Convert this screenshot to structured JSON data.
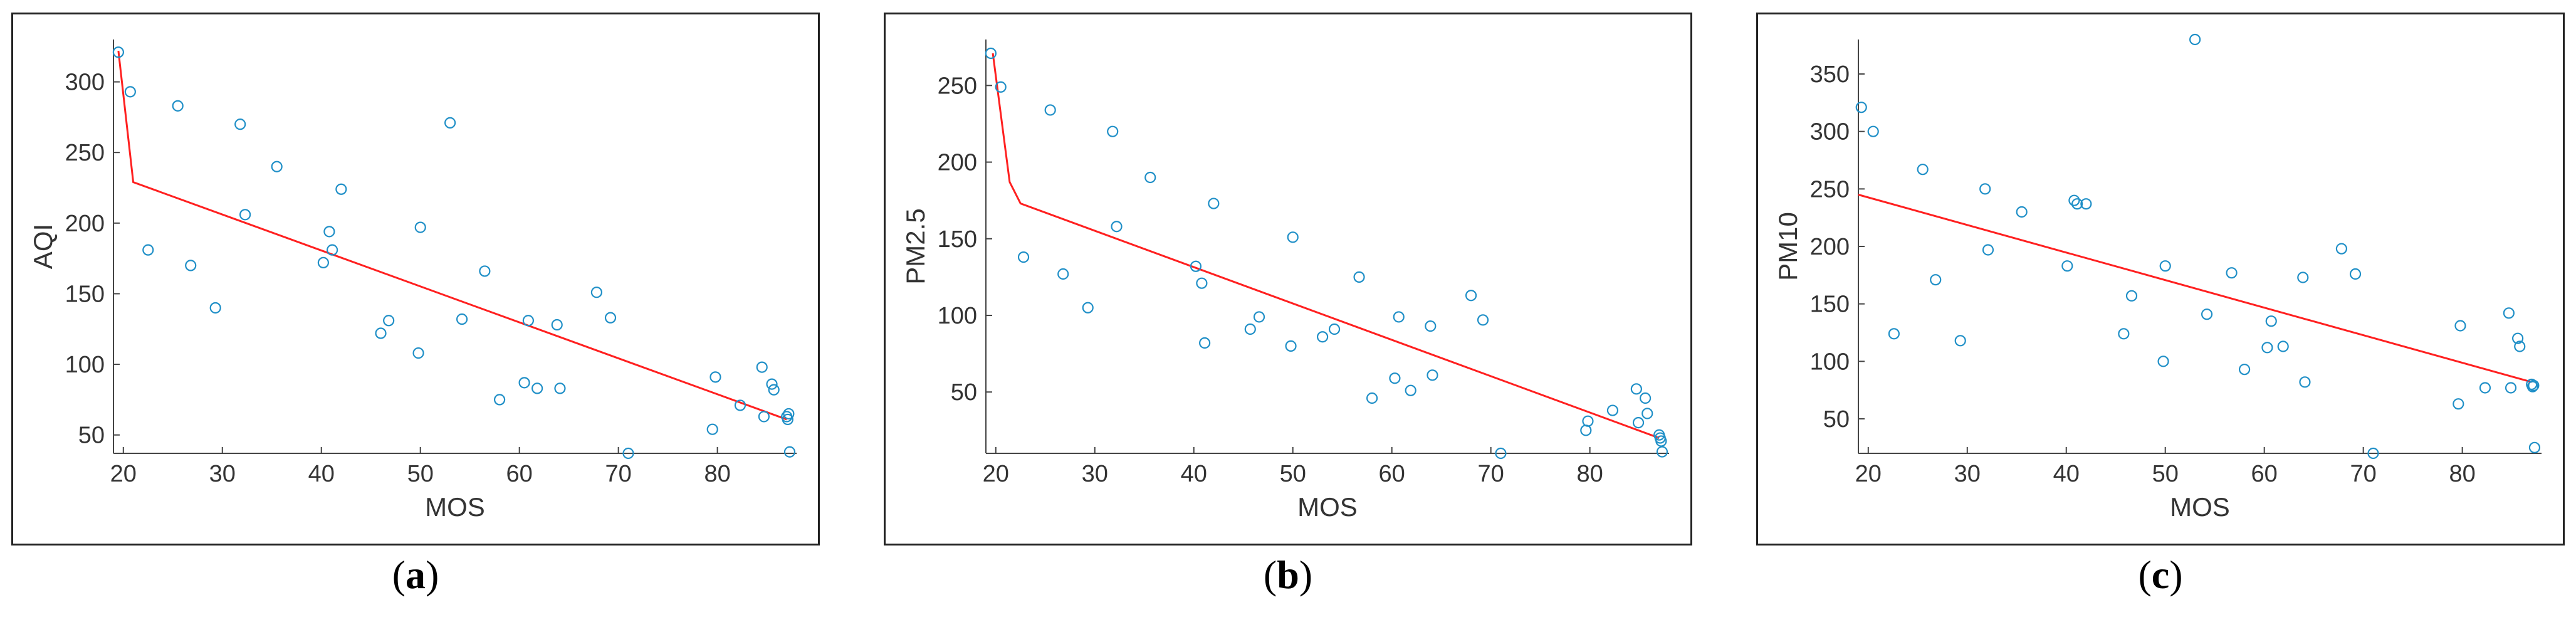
{
  "colors": {
    "points": "#1f8fc7",
    "fit": "#ff2020",
    "axis": "#444444"
  },
  "chart_data": [
    {
      "type": "scatter",
      "caption_letter": "a",
      "xlabel": "MOS",
      "ylabel": "AQI",
      "xlim": [
        19,
        88
      ],
      "ylim": [
        37,
        330
      ],
      "xticks": [
        "20",
        "30",
        "40",
        "50",
        "60",
        "70",
        "80"
      ],
      "yticks": [
        "50",
        "100",
        "150",
        "200",
        "250",
        "300"
      ],
      "points": [
        {
          "x": 19.5,
          "y": 321
        },
        {
          "x": 20.7,
          "y": 293
        },
        {
          "x": 22.5,
          "y": 181
        },
        {
          "x": 25.5,
          "y": 283
        },
        {
          "x": 26.8,
          "y": 170
        },
        {
          "x": 29.3,
          "y": 140
        },
        {
          "x": 31.8,
          "y": 270
        },
        {
          "x": 32.3,
          "y": 206
        },
        {
          "x": 35.5,
          "y": 240
        },
        {
          "x": 40.2,
          "y": 172
        },
        {
          "x": 40.8,
          "y": 194
        },
        {
          "x": 41.1,
          "y": 181
        },
        {
          "x": 42.0,
          "y": 224
        },
        {
          "x": 46.0,
          "y": 122
        },
        {
          "x": 46.8,
          "y": 131
        },
        {
          "x": 49.8,
          "y": 108
        },
        {
          "x": 50.0,
          "y": 197
        },
        {
          "x": 53.0,
          "y": 271
        },
        {
          "x": 54.2,
          "y": 132
        },
        {
          "x": 56.5,
          "y": 166
        },
        {
          "x": 58.0,
          "y": 75
        },
        {
          "x": 60.5,
          "y": 87
        },
        {
          "x": 60.9,
          "y": 131
        },
        {
          "x": 61.8,
          "y": 83
        },
        {
          "x": 63.8,
          "y": 128
        },
        {
          "x": 64.1,
          "y": 83
        },
        {
          "x": 67.8,
          "y": 151
        },
        {
          "x": 69.2,
          "y": 133
        },
        {
          "x": 71.0,
          "y": 37
        },
        {
          "x": 79.5,
          "y": 54
        },
        {
          "x": 79.8,
          "y": 91
        },
        {
          "x": 82.3,
          "y": 71
        },
        {
          "x": 84.5,
          "y": 98
        },
        {
          "x": 84.7,
          "y": 63
        },
        {
          "x": 85.5,
          "y": 86
        },
        {
          "x": 85.7,
          "y": 82
        },
        {
          "x": 87.0,
          "y": 63
        },
        {
          "x": 87.1,
          "y": 61
        },
        {
          "x": 87.2,
          "y": 65
        },
        {
          "x": 87.3,
          "y": 38
        }
      ],
      "fit_line": [
        {
          "x": 19.5,
          "y": 322
        },
        {
          "x": 21.0,
          "y": 229
        },
        {
          "x": 87.0,
          "y": 61
        }
      ]
    },
    {
      "type": "scatter",
      "caption_letter": "b",
      "xlabel": "MOS",
      "ylabel": "PM2.5",
      "xlim": [
        19,
        88
      ],
      "ylim": [
        10,
        280
      ],
      "xticks": [
        "20",
        "30",
        "40",
        "50",
        "60",
        "70",
        "80"
      ],
      "yticks": [
        "50",
        "100",
        "150",
        "200",
        "250"
      ],
      "points": [
        {
          "x": 19.5,
          "y": 271
        },
        {
          "x": 20.5,
          "y": 249
        },
        {
          "x": 22.8,
          "y": 138
        },
        {
          "x": 25.5,
          "y": 234
        },
        {
          "x": 26.8,
          "y": 127
        },
        {
          "x": 29.3,
          "y": 105
        },
        {
          "x": 31.8,
          "y": 220
        },
        {
          "x": 32.2,
          "y": 158
        },
        {
          "x": 35.6,
          "y": 190
        },
        {
          "x": 40.2,
          "y": 132
        },
        {
          "x": 40.8,
          "y": 121
        },
        {
          "x": 41.1,
          "y": 82
        },
        {
          "x": 42.0,
          "y": 173
        },
        {
          "x": 45.7,
          "y": 91
        },
        {
          "x": 46.6,
          "y": 99
        },
        {
          "x": 49.8,
          "y": 80
        },
        {
          "x": 50.0,
          "y": 151
        },
        {
          "x": 53.0,
          "y": 86
        },
        {
          "x": 54.2,
          "y": 91
        },
        {
          "x": 56.7,
          "y": 125
        },
        {
          "x": 58.0,
          "y": 46
        },
        {
          "x": 60.3,
          "y": 59
        },
        {
          "x": 60.7,
          "y": 99
        },
        {
          "x": 61.9,
          "y": 51
        },
        {
          "x": 63.9,
          "y": 93
        },
        {
          "x": 64.1,
          "y": 61
        },
        {
          "x": 68.0,
          "y": 113
        },
        {
          "x": 69.2,
          "y": 97
        },
        {
          "x": 71.0,
          "y": 10
        },
        {
          "x": 79.6,
          "y": 25
        },
        {
          "x": 79.8,
          "y": 31
        },
        {
          "x": 82.3,
          "y": 38
        },
        {
          "x": 84.7,
          "y": 52
        },
        {
          "x": 84.9,
          "y": 30
        },
        {
          "x": 85.6,
          "y": 46
        },
        {
          "x": 85.8,
          "y": 36
        },
        {
          "x": 87.0,
          "y": 22
        },
        {
          "x": 87.1,
          "y": 20
        },
        {
          "x": 87.2,
          "y": 18
        },
        {
          "x": 87.3,
          "y": 11
        }
      ],
      "fit_line": [
        {
          "x": 19.7,
          "y": 271
        },
        {
          "x": 21.4,
          "y": 187
        },
        {
          "x": 22.5,
          "y": 173
        },
        {
          "x": 87.0,
          "y": 20
        }
      ]
    },
    {
      "type": "scatter",
      "caption_letter": "c",
      "xlabel": "MOS",
      "ylabel": "PM10",
      "xlim": [
        19,
        88
      ],
      "ylim": [
        20,
        380
      ],
      "xticks": [
        "20",
        "30",
        "40",
        "50",
        "60",
        "70",
        "80"
      ],
      "yticks": [
        "50",
        "100",
        "150",
        "200",
        "250",
        "300",
        "350"
      ],
      "points": [
        {
          "x": 19.3,
          "y": 321
        },
        {
          "x": 20.5,
          "y": 300
        },
        {
          "x": 22.6,
          "y": 124
        },
        {
          "x": 25.5,
          "y": 267
        },
        {
          "x": 26.8,
          "y": 171
        },
        {
          "x": 29.3,
          "y": 118
        },
        {
          "x": 31.8,
          "y": 250
        },
        {
          "x": 32.1,
          "y": 197
        },
        {
          "x": 35.5,
          "y": 230
        },
        {
          "x": 40.1,
          "y": 183
        },
        {
          "x": 40.8,
          "y": 240
        },
        {
          "x": 41.1,
          "y": 237
        },
        {
          "x": 42.0,
          "y": 237
        },
        {
          "x": 45.8,
          "y": 124
        },
        {
          "x": 46.6,
          "y": 157
        },
        {
          "x": 49.8,
          "y": 100
        },
        {
          "x": 50.0,
          "y": 183
        },
        {
          "x": 53.0,
          "y": 380
        },
        {
          "x": 54.2,
          "y": 141
        },
        {
          "x": 56.7,
          "y": 177
        },
        {
          "x": 58.0,
          "y": 93
        },
        {
          "x": 60.3,
          "y": 112
        },
        {
          "x": 60.7,
          "y": 135
        },
        {
          "x": 61.9,
          "y": 113
        },
        {
          "x": 63.9,
          "y": 173
        },
        {
          "x": 64.1,
          "y": 82
        },
        {
          "x": 67.8,
          "y": 198
        },
        {
          "x": 69.2,
          "y": 176
        },
        {
          "x": 71.0,
          "y": 20
        },
        {
          "x": 79.6,
          "y": 63
        },
        {
          "x": 79.8,
          "y": 131
        },
        {
          "x": 82.3,
          "y": 77
        },
        {
          "x": 84.7,
          "y": 142
        },
        {
          "x": 84.9,
          "y": 77
        },
        {
          "x": 85.6,
          "y": 120
        },
        {
          "x": 85.8,
          "y": 113
        },
        {
          "x": 87.0,
          "y": 80
        },
        {
          "x": 87.1,
          "y": 78
        },
        {
          "x": 87.2,
          "y": 79
        },
        {
          "x": 87.3,
          "y": 25
        }
      ],
      "fit_line": [
        {
          "x": 19.0,
          "y": 245
        },
        {
          "x": 87.0,
          "y": 82
        }
      ]
    }
  ]
}
